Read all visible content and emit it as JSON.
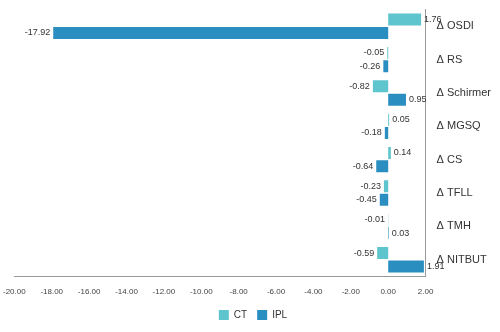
{
  "chart_data": {
    "type": "bar",
    "orientation": "horizontal",
    "categories": [
      "Δ OSDI",
      "Δ RS",
      "Δ Schirmer",
      "Δ MGSQ",
      "Δ CS",
      "Δ TFLL",
      "Δ TMH",
      "Δ NITBUT"
    ],
    "series": [
      {
        "name": "CT",
        "color": "#5ec4cd",
        "values": [
          1.76,
          -0.05,
          -0.82,
          0.05,
          0.14,
          -0.23,
          -0.01,
          -0.59
        ]
      },
      {
        "name": "IPL",
        "color": "#2a8fc0",
        "values": [
          -17.92,
          -0.26,
          0.95,
          -0.18,
          -0.64,
          -0.45,
          0.03,
          1.91
        ]
      }
    ],
    "xlim": [
      -20,
      2
    ],
    "xticks": [
      {
        "value": -20,
        "label": "-20.00"
      },
      {
        "value": -18,
        "label": "-18.00"
      },
      {
        "value": -16,
        "label": "-16.00"
      },
      {
        "value": -14,
        "label": "-14.00"
      },
      {
        "value": -12,
        "label": "-12.00"
      },
      {
        "value": -10,
        "label": "-10.00"
      },
      {
        "value": -8,
        "label": "-8.00"
      },
      {
        "value": -6,
        "label": "-6.00"
      },
      {
        "value": -4,
        "label": "-4.00"
      },
      {
        "value": -2,
        "label": "-2.00"
      },
      {
        "value": 0,
        "label": "0.00"
      },
      {
        "value": 2,
        "label": "2.00"
      }
    ],
    "grid": false,
    "legend": "bottom",
    "data_labels": true
  }
}
